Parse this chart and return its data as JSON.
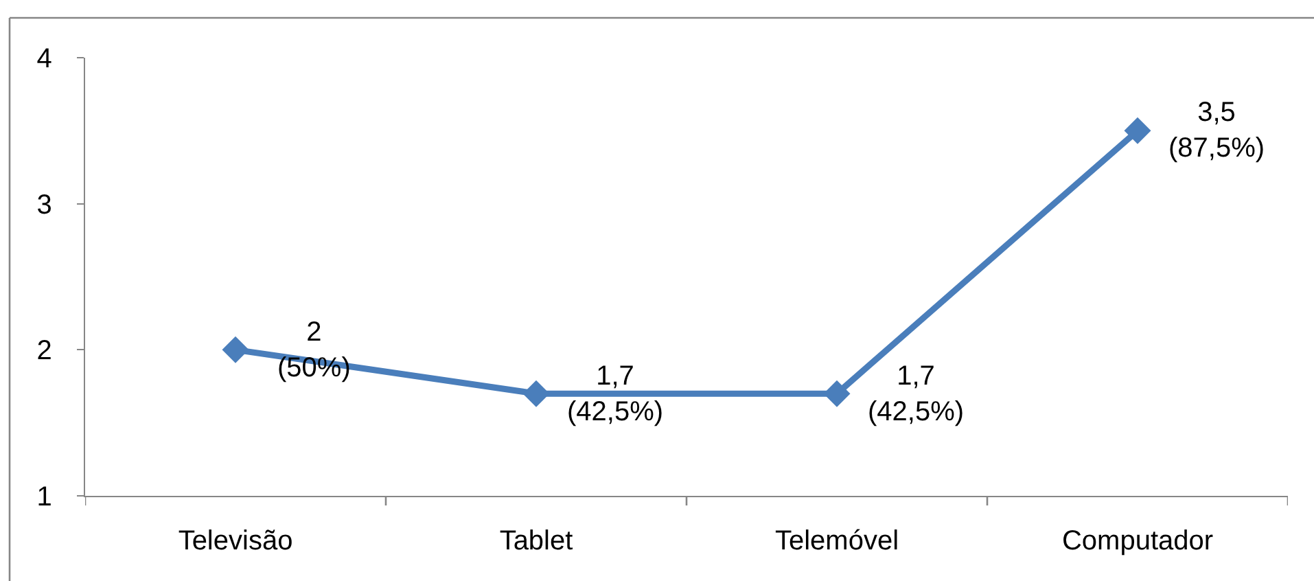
{
  "chart_data": {
    "type": "line",
    "categories": [
      "Televisão",
      "Tablet",
      "Telemóvel",
      "Computador"
    ],
    "series": [
      {
        "color": "#4a7ebb",
        "values": [
          2,
          1.7,
          1.7,
          3.5
        ],
        "value_labels": [
          "2\n(50%)",
          "1,7\n(42,5%)",
          "1,7\n(42,5%)",
          "3,5\n(87,5%)"
        ]
      }
    ],
    "ylim": [
      1,
      4
    ],
    "yticks": [
      1,
      2,
      3,
      4
    ],
    "marker": "diamond",
    "line_style": "solid"
  }
}
